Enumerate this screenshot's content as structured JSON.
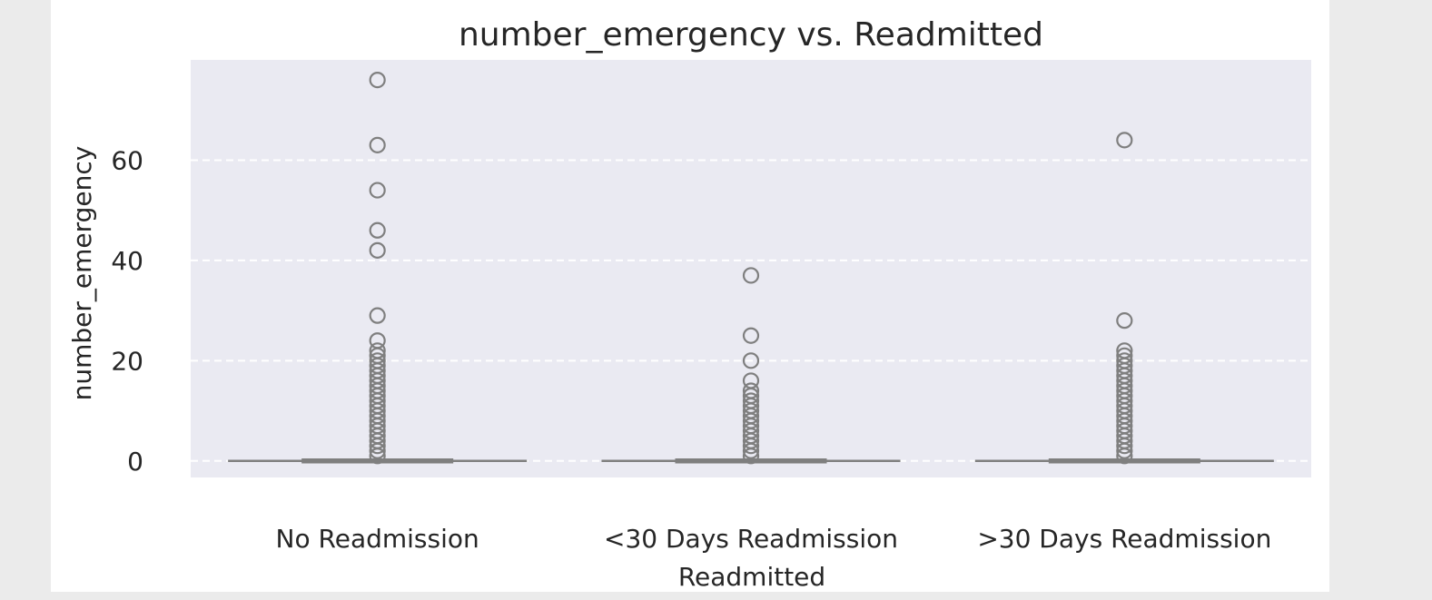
{
  "chart_data": {
    "type": "box",
    "title": "number_emergency vs. Readmitted",
    "xlabel": "Readmitted",
    "ylabel": "number_emergency",
    "categories": [
      "No Readmission",
      "<30 Days Readmission",
      ">30 Days Readmission"
    ],
    "y_ticks": [
      0,
      20,
      40,
      60
    ],
    "ylim": [
      -3.3,
      80
    ],
    "grid": true,
    "grid_style": "dashed-horizontal",
    "colors": {
      "plot_background": "#eaeaf2",
      "grid": "#ffffff",
      "box": "#7f7f7f",
      "text": "#262626"
    },
    "boxes": [
      {
        "category": "No Readmission",
        "min": 0,
        "q1": 0,
        "median": 0,
        "q3": 0,
        "max": 0,
        "outliers": [
          1,
          2,
          3,
          4,
          5,
          6,
          7,
          8,
          9,
          10,
          11,
          12,
          13,
          14,
          15,
          16,
          17,
          18,
          19,
          20,
          21,
          22,
          24,
          29,
          42,
          46,
          54,
          63,
          76
        ]
      },
      {
        "category": "<30 Days Readmission",
        "min": 0,
        "q1": 0,
        "median": 0,
        "q3": 0,
        "max": 0,
        "outliers": [
          1,
          2,
          3,
          4,
          5,
          6,
          7,
          8,
          9,
          10,
          11,
          12,
          13,
          14,
          16,
          20,
          25,
          37
        ]
      },
      {
        "category": ">30 Days Readmission",
        "min": 0,
        "q1": 0,
        "median": 0,
        "q3": 0,
        "max": 0,
        "outliers": [
          1,
          2,
          3,
          4,
          5,
          6,
          7,
          8,
          9,
          10,
          11,
          12,
          13,
          14,
          15,
          16,
          17,
          18,
          19,
          20,
          21,
          22,
          28,
          64
        ]
      }
    ]
  }
}
